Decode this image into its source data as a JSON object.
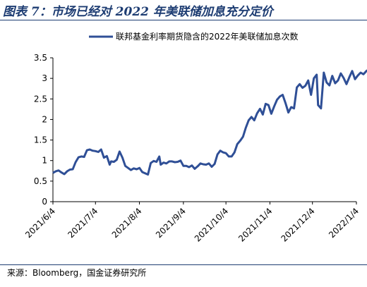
{
  "figure": {
    "title": "图表 7：市场已经对 2022 年美联储加息充分定价",
    "source": "来源：Bloomberg，国金证券研究所"
  },
  "colors": {
    "line": "#2f4f96",
    "title": "#1d3c72"
  },
  "chart_data": {
    "type": "line",
    "title": "",
    "xlabel": "",
    "ylabel": "",
    "ylim": [
      0,
      3.5
    ],
    "yticks": [
      "0",
      "0.5",
      "1",
      "1.5",
      "2",
      "2.5",
      "3",
      "3.5"
    ],
    "xticks": [
      "2021/6/4",
      "2021/7/4",
      "2021/8/4",
      "2021/9/4",
      "2021/10/4",
      "2021/11/4",
      "2021/12/4",
      "2022/1/4"
    ],
    "legend": "top-center",
    "grid": false,
    "series": [
      {
        "name": "联邦基金利率期货隐含的2022年美联储加息次数",
        "points": [
          [
            "2021-06-04",
            0.7
          ],
          [
            "2021-06-06",
            0.74
          ],
          [
            "2021-06-08",
            0.76
          ],
          [
            "2021-06-10",
            0.71
          ],
          [
            "2021-06-12",
            0.67
          ],
          [
            "2021-06-14",
            0.74
          ],
          [
            "2021-06-16",
            0.78
          ],
          [
            "2021-06-18",
            0.79
          ],
          [
            "2021-06-20",
            0.96
          ],
          [
            "2021-06-22",
            1.08
          ],
          [
            "2021-06-24",
            1.1
          ],
          [
            "2021-06-26",
            1.09
          ],
          [
            "2021-06-28",
            1.25
          ],
          [
            "2021-06-30",
            1.27
          ],
          [
            "2021-07-02",
            1.24
          ],
          [
            "2021-07-04",
            1.23
          ],
          [
            "2021-07-06",
            1.21
          ],
          [
            "2021-07-08",
            1.27
          ],
          [
            "2021-07-10",
            1.07
          ],
          [
            "2021-07-12",
            1.11
          ],
          [
            "2021-07-14",
            0.9
          ],
          [
            "2021-07-15",
            0.98
          ],
          [
            "2021-07-17",
            0.97
          ],
          [
            "2021-07-19",
            1.02
          ],
          [
            "2021-07-21",
            1.22
          ],
          [
            "2021-07-23",
            1.07
          ],
          [
            "2021-07-25",
            0.87
          ],
          [
            "2021-07-27",
            0.82
          ],
          [
            "2021-07-29",
            0.77
          ],
          [
            "2021-07-31",
            0.81
          ],
          [
            "2021-08-02",
            0.79
          ],
          [
            "2021-08-04",
            0.82
          ],
          [
            "2021-08-06",
            0.72
          ],
          [
            "2021-08-08",
            0.69
          ],
          [
            "2021-08-10",
            0.66
          ],
          [
            "2021-08-12",
            0.94
          ],
          [
            "2021-08-14",
            0.99
          ],
          [
            "2021-08-16",
            0.97
          ],
          [
            "2021-08-18",
            1.1
          ],
          [
            "2021-08-19",
            0.9
          ],
          [
            "2021-08-21",
            0.95
          ],
          [
            "2021-08-23",
            0.93
          ],
          [
            "2021-08-25",
            0.98
          ],
          [
            "2021-08-27",
            0.98
          ],
          [
            "2021-08-29",
            0.96
          ],
          [
            "2021-08-31",
            0.97
          ],
          [
            "2021-09-02",
            1.0
          ],
          [
            "2021-09-04",
            0.87
          ],
          [
            "2021-09-06",
            0.87
          ],
          [
            "2021-09-08",
            0.84
          ],
          [
            "2021-09-10",
            0.88
          ],
          [
            "2021-09-12",
            0.8
          ],
          [
            "2021-09-14",
            0.86
          ],
          [
            "2021-09-16",
            0.93
          ],
          [
            "2021-09-18",
            0.91
          ],
          [
            "2021-09-20",
            0.9
          ],
          [
            "2021-09-22",
            0.93
          ],
          [
            "2021-09-24",
            0.85
          ],
          [
            "2021-09-26",
            0.92
          ],
          [
            "2021-09-28",
            1.15
          ],
          [
            "2021-09-30",
            1.24
          ],
          [
            "2021-10-02",
            1.2
          ],
          [
            "2021-10-04",
            1.18
          ],
          [
            "2021-10-06",
            1.1
          ],
          [
            "2021-10-08",
            1.1
          ],
          [
            "2021-10-10",
            1.2
          ],
          [
            "2021-10-12",
            1.4
          ],
          [
            "2021-10-14",
            1.48
          ],
          [
            "2021-10-16",
            1.58
          ],
          [
            "2021-10-18",
            1.8
          ],
          [
            "2021-10-20",
            1.98
          ],
          [
            "2021-10-22",
            2.06
          ],
          [
            "2021-10-24",
            1.98
          ],
          [
            "2021-10-26",
            2.15
          ],
          [
            "2021-10-28",
            2.26
          ],
          [
            "2021-10-30",
            2.12
          ],
          [
            "2021-11-01",
            2.38
          ],
          [
            "2021-11-03",
            2.35
          ],
          [
            "2021-11-05",
            2.14
          ],
          [
            "2021-11-07",
            2.32
          ],
          [
            "2021-11-09",
            2.48
          ],
          [
            "2021-11-11",
            2.56
          ],
          [
            "2021-11-13",
            2.6
          ],
          [
            "2021-11-15",
            2.4
          ],
          [
            "2021-11-17",
            2.17
          ],
          [
            "2021-11-19",
            2.3
          ],
          [
            "2021-11-21",
            2.27
          ],
          [
            "2021-11-23",
            2.78
          ],
          [
            "2021-11-25",
            2.86
          ],
          [
            "2021-11-27",
            2.77
          ],
          [
            "2021-11-29",
            2.82
          ],
          [
            "2021-12-01",
            2.95
          ],
          [
            "2021-12-03",
            2.6
          ],
          [
            "2021-12-05",
            3.0
          ],
          [
            "2021-12-07",
            3.09
          ],
          [
            "2021-12-08",
            2.35
          ],
          [
            "2021-12-10",
            2.27
          ],
          [
            "2021-12-12",
            3.14
          ],
          [
            "2021-12-14",
            2.9
          ],
          [
            "2021-12-16",
            2.83
          ],
          [
            "2021-12-18",
            3.06
          ],
          [
            "2021-12-20",
            2.88
          ],
          [
            "2021-12-22",
            2.95
          ],
          [
            "2021-12-24",
            3.12
          ],
          [
            "2021-12-26",
            3.01
          ],
          [
            "2021-12-28",
            2.86
          ],
          [
            "2021-12-30",
            3.03
          ],
          [
            "2022-01-01",
            3.18
          ],
          [
            "2022-01-03",
            2.98
          ],
          [
            "2022-01-05",
            3.07
          ],
          [
            "2022-01-07",
            3.14
          ],
          [
            "2022-01-09",
            3.1
          ],
          [
            "2022-01-11",
            3.18
          ],
          [
            "2022-01-13",
            3.22
          ],
          [
            "2022-01-15",
            3.15
          ],
          [
            "2022-01-17",
            3.21
          ],
          [
            "2022-01-19",
            3.25
          ]
        ]
      }
    ]
  }
}
